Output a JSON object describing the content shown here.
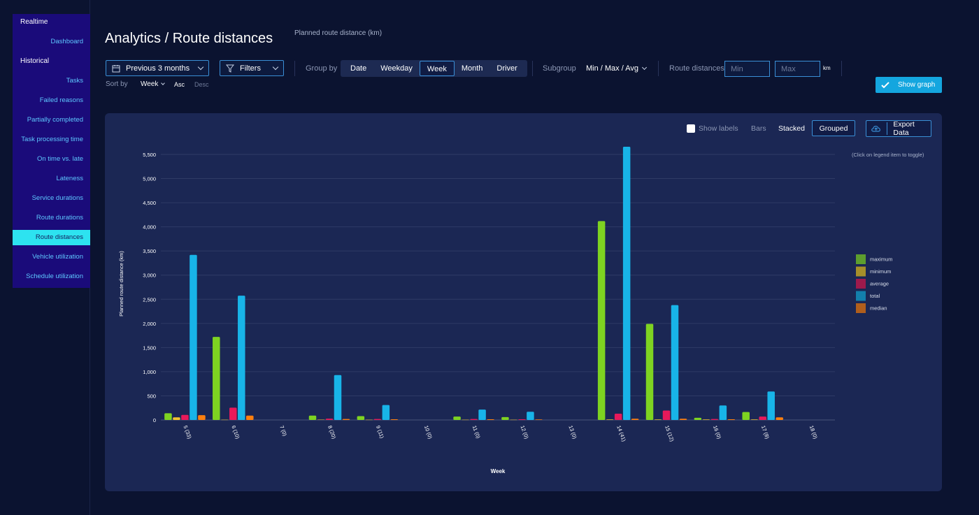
{
  "sidebar": {
    "sections": [
      {
        "label": "Realtime",
        "items": [
          "Dashboard"
        ]
      },
      {
        "label": "Historical",
        "items": [
          "Tasks",
          "Failed reasons",
          "Partially completed",
          "Task processing time",
          "On time vs. late",
          "Lateness",
          "Service durations",
          "Route durations",
          "Route distances",
          "Vehicle utilization",
          "Schedule utilization"
        ]
      }
    ],
    "active": "Route distances"
  },
  "header": {
    "title": "Analytics / Route distances",
    "subtitle": "Planned route distance (km)"
  },
  "controls": {
    "period": "Previous 3 months",
    "filters": "Filters",
    "group_by_label": "Group by",
    "group_by_options": [
      "Date",
      "Weekday",
      "Week",
      "Month",
      "Driver"
    ],
    "group_by_selected": "Week",
    "subgroup_label": "Subgroup",
    "subgroup_value": "Min / Max / Avg",
    "range_label": "Route distances",
    "min_placeholder": "Min",
    "max_placeholder": "Max",
    "unit": "km",
    "sort_by_label": "Sort by",
    "sort_by_value": "Week",
    "asc": "Asc",
    "desc": "Desc",
    "show_graph": "Show graph"
  },
  "panel": {
    "show_labels": "Show labels",
    "bars_label": "Bars",
    "stacked": "Stacked",
    "grouped": "Grouped",
    "export": "Export Data",
    "legend_hint": "(Click on legend item to toggle)"
  },
  "chart_data": {
    "type": "bar",
    "mode": "grouped",
    "xlabel": "Week",
    "ylabel": "Planned route distance (km)",
    "ylim": [
      0,
      5500
    ],
    "yticks": [
      0,
      500,
      1000,
      1500,
      2000,
      2500,
      3000,
      3500,
      4000,
      4500,
      5000,
      5500
    ],
    "ytick_labels": [
      "0",
      "500",
      "1,000",
      "1,500",
      "2,000",
      "2,500",
      "3,000",
      "3,500",
      "4,000",
      "4,500",
      "5,000",
      "5,500"
    ],
    "grid": true,
    "legend_position": "right",
    "categories": [
      "5 (33)",
      "6 (10)",
      "7 (0)",
      "8 (20)",
      "9 (11)",
      "10 (0)",
      "11 (0)",
      "12 (0)",
      "13 (0)",
      "14 (41)",
      "15 (12)",
      "16 (0)",
      "17 (8)",
      "18 (0)"
    ],
    "series": [
      {
        "name": "maximum",
        "color": "#7ed321",
        "legend_color": "#5d9e2e",
        "values": [
          140,
          1720,
          0,
          90,
          80,
          0,
          70,
          60,
          0,
          4120,
          1990,
          45,
          165,
          0
        ]
      },
      {
        "name": "minimum",
        "color": "#f2c230",
        "legend_color": "#a68f2a",
        "values": [
          55,
          5,
          0,
          8,
          6,
          0,
          5,
          5,
          0,
          10,
          10,
          10,
          10,
          0
        ]
      },
      {
        "name": "average",
        "color": "#e8195a",
        "legend_color": "#9e1a4c",
        "values": [
          105,
          255,
          0,
          28,
          20,
          0,
          20,
          15,
          0,
          130,
          195,
          20,
          70,
          0
        ]
      },
      {
        "name": "total",
        "color": "#18b4e8",
        "legend_color": "#137fac",
        "values": [
          3420,
          2575,
          0,
          930,
          310,
          0,
          215,
          170,
          0,
          5660,
          2380,
          300,
          590,
          0
        ]
      },
      {
        "name": "median",
        "color": "#ff7f0e",
        "legend_color": "#b05e1c",
        "values": [
          100,
          90,
          0,
          20,
          15,
          0,
          15,
          10,
          0,
          25,
          25,
          15,
          55,
          0
        ]
      }
    ]
  }
}
